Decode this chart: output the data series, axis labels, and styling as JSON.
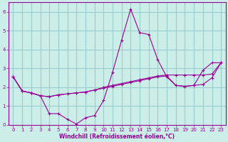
{
  "xlabel": "Windchill (Refroidissement éolien,°C)",
  "bg_color": "#cceee8",
  "line_color": "#990099",
  "grid_color": "#99cccc",
  "xlim": [
    -0.5,
    23.5
  ],
  "ylim": [
    0,
    6.5
  ],
  "xticks": [
    0,
    1,
    2,
    3,
    4,
    5,
    6,
    7,
    8,
    9,
    10,
    11,
    12,
    13,
    14,
    15,
    16,
    17,
    18,
    19,
    20,
    21,
    22,
    23
  ],
  "yticks": [
    0,
    1,
    2,
    3,
    4,
    5,
    6
  ],
  "line1_x": [
    0,
    1,
    2,
    3,
    4,
    5,
    6,
    7,
    8,
    9,
    10,
    11,
    12,
    13,
    14,
    15,
    16,
    17,
    18,
    19,
    20,
    21,
    22,
    23
  ],
  "line1_y": [
    2.55,
    1.8,
    1.7,
    1.55,
    0.6,
    0.6,
    0.3,
    0.05,
    0.38,
    0.5,
    1.3,
    2.8,
    4.5,
    6.15,
    4.9,
    4.8,
    3.45,
    2.55,
    2.1,
    2.05,
    2.1,
    2.9,
    3.3,
    3.3
  ],
  "line2_x": [
    0,
    1,
    2,
    3,
    4,
    5,
    6,
    7,
    8,
    9,
    10,
    11,
    12,
    13,
    14,
    15,
    16,
    17,
    18,
    19,
    20,
    21,
    22,
    23
  ],
  "line2_y": [
    2.55,
    1.8,
    1.7,
    1.55,
    1.5,
    1.6,
    1.65,
    1.7,
    1.75,
    1.85,
    1.95,
    2.05,
    2.15,
    2.25,
    2.35,
    2.45,
    2.55,
    2.6,
    2.1,
    2.05,
    2.1,
    2.15,
    2.5,
    3.3
  ],
  "line3_x": [
    0,
    1,
    2,
    3,
    4,
    5,
    6,
    7,
    8,
    9,
    10,
    11,
    12,
    13,
    14,
    15,
    16,
    17,
    18,
    19,
    20,
    21,
    22,
    23
  ],
  "line3_y": [
    2.55,
    1.8,
    1.7,
    1.55,
    1.5,
    1.6,
    1.65,
    1.7,
    1.75,
    1.85,
    2.0,
    2.1,
    2.2,
    2.3,
    2.4,
    2.5,
    2.6,
    2.65,
    2.65,
    2.65,
    2.65,
    2.65,
    2.7,
    3.3
  ]
}
